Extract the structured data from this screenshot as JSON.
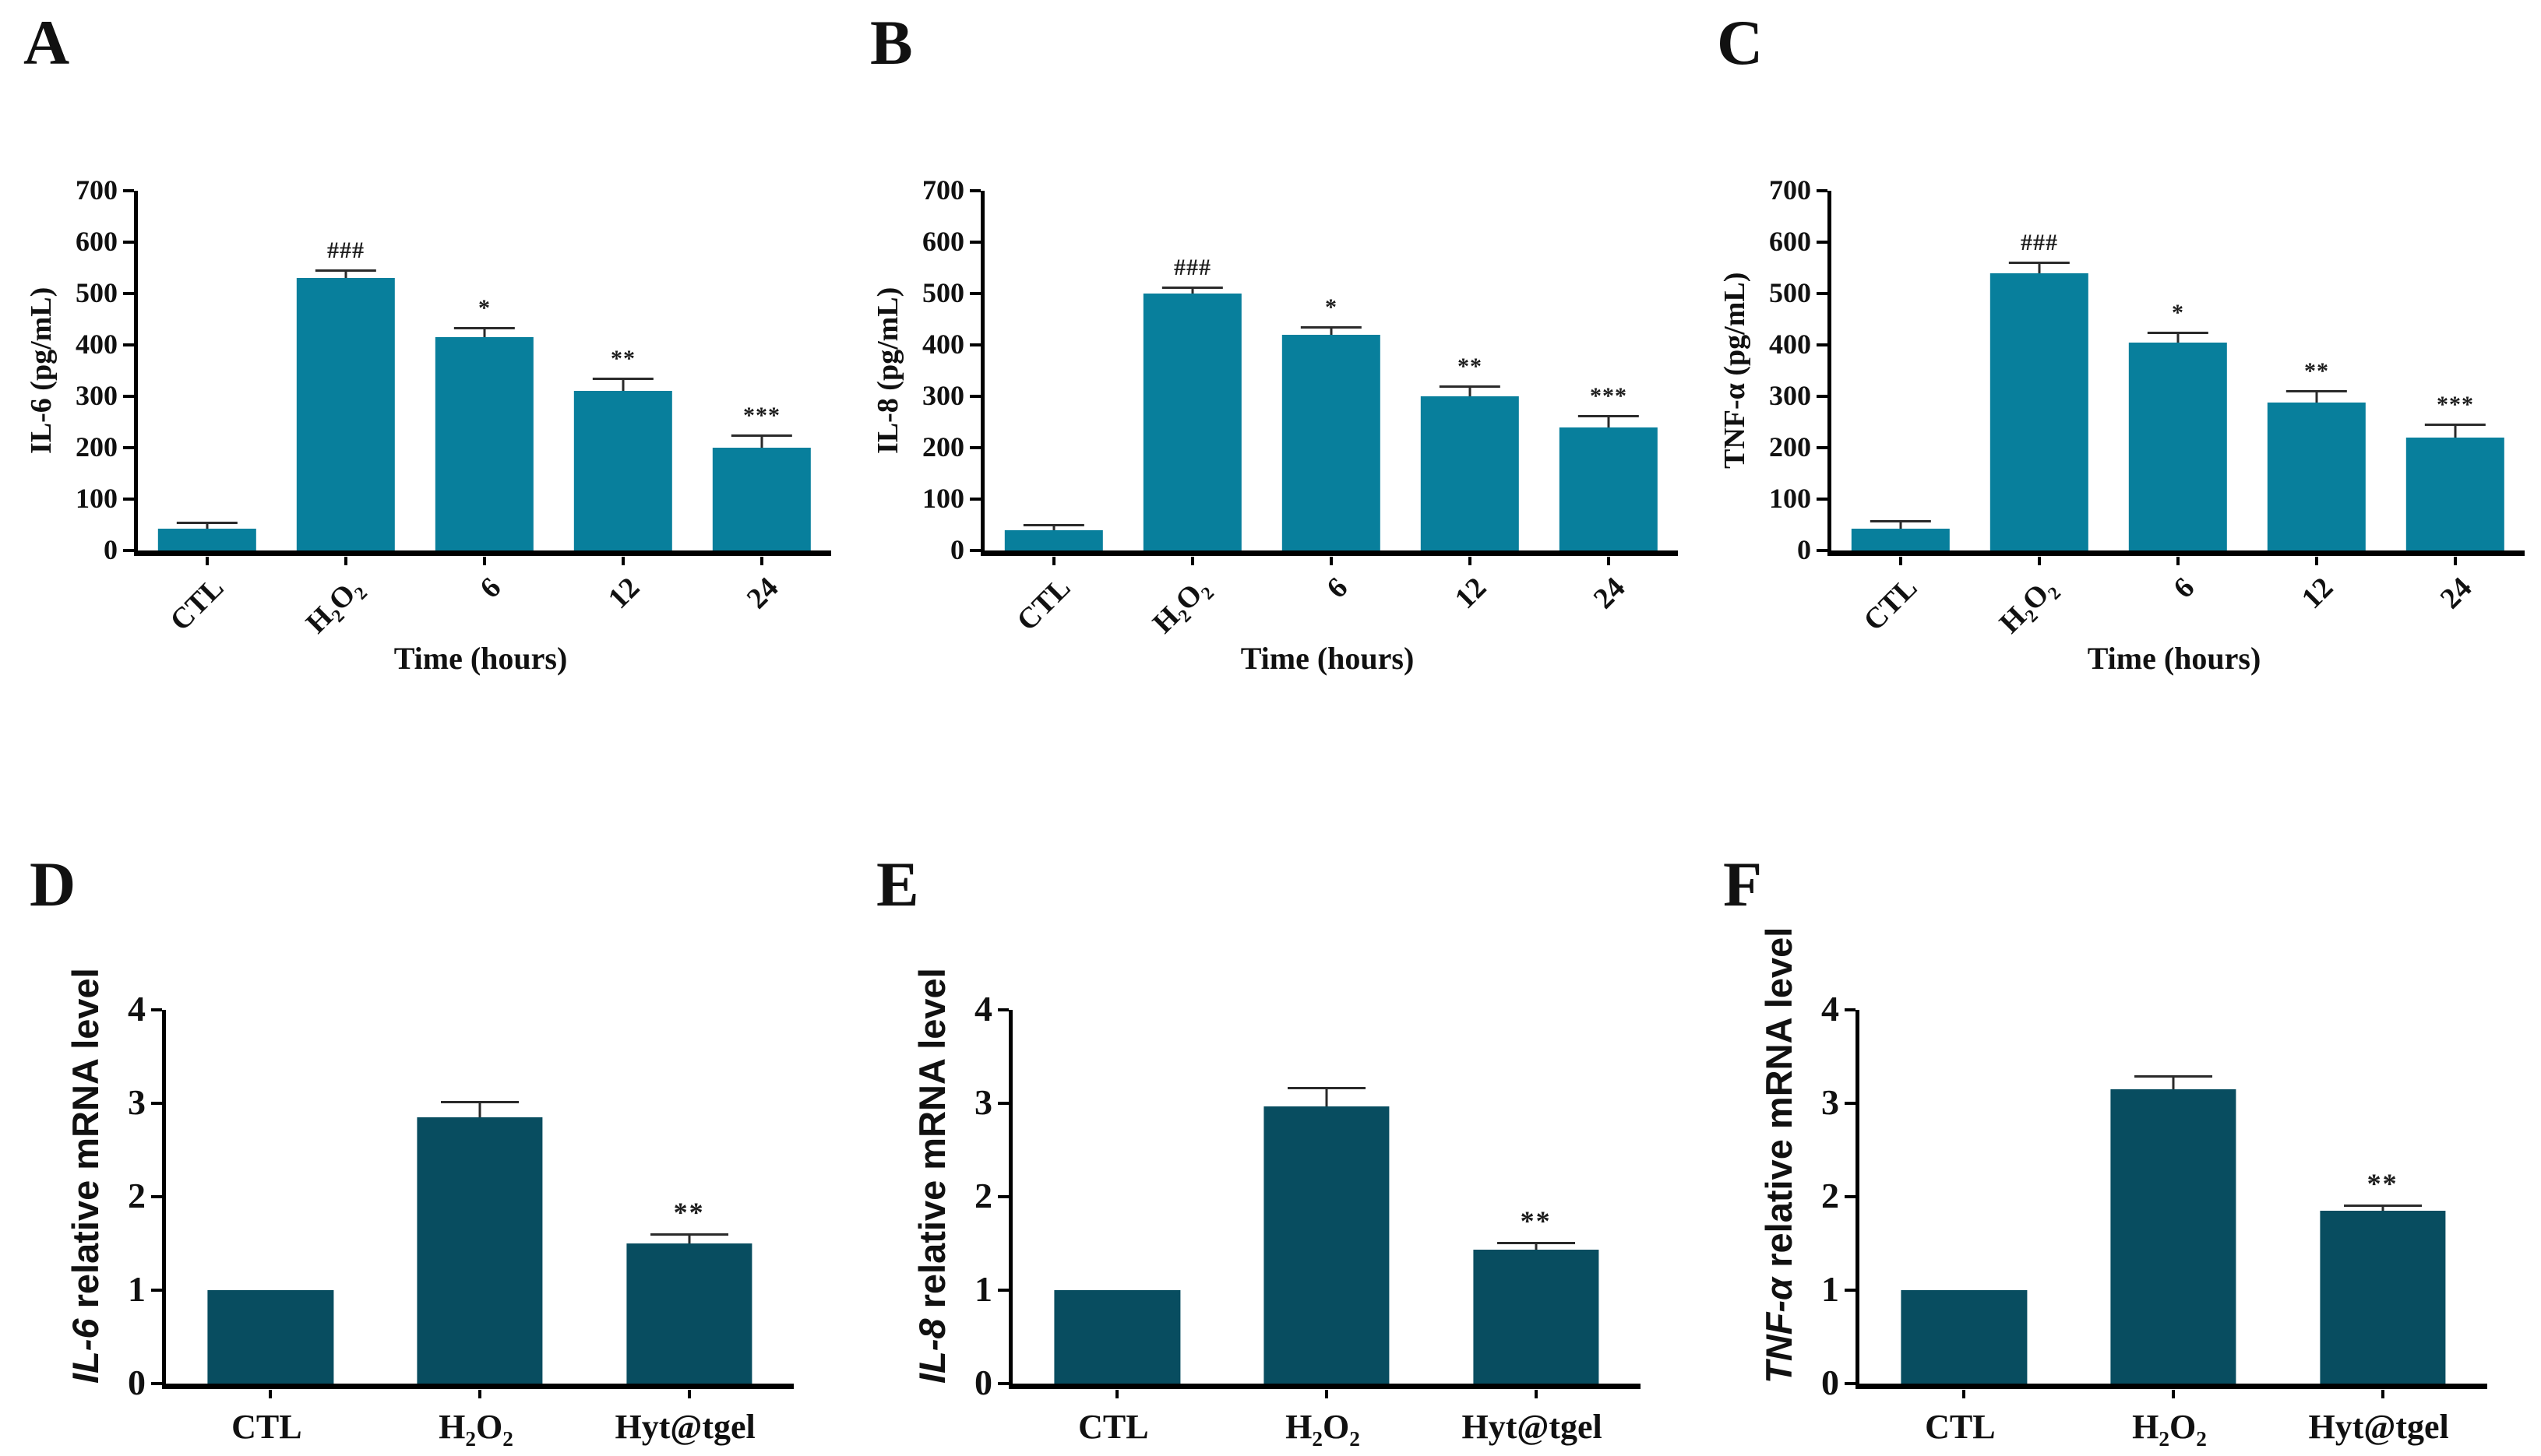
{
  "figure": {
    "panel_letters": [
      "A",
      "B",
      "C",
      "D",
      "E",
      "F"
    ],
    "bar_color_top_row": "#087f9c",
    "bar_color_bottom_row": "#084d60",
    "axis_color": "#000000",
    "error_bar_color": "#2a2a2a"
  },
  "chart_data": [
    {
      "type": "bar",
      "panel_label": "A",
      "ylabel_text": "IL-6 (pg/mL)",
      "ylabel": [
        {
          "t": "IL-6 (pg/mL)"
        }
      ],
      "xlabel": "Time (hours)",
      "ylim": [
        0,
        700
      ],
      "ytick_step": 100,
      "categories_text": [
        "CTL",
        "H2O2",
        "6",
        "12",
        "24"
      ],
      "categories": [
        [
          {
            "t": "CTL"
          }
        ],
        [
          {
            "t": "H"
          },
          {
            "t": "2",
            "sub": true
          },
          {
            "t": "O"
          },
          {
            "t": "2",
            "sub": true
          }
        ],
        [
          {
            "t": "6"
          }
        ],
        [
          {
            "t": "12"
          }
        ],
        [
          {
            "t": "24"
          }
        ]
      ],
      "values": [
        42,
        530,
        415,
        310,
        200
      ],
      "errors": [
        12,
        15,
        18,
        25,
        25
      ],
      "annotations": [
        "",
        "###",
        "*",
        "**",
        "***"
      ],
      "bar_color": "#087f9c",
      "bar_frac": 0.71,
      "rotated_xticks": true,
      "grid": false,
      "legend": null
    },
    {
      "type": "bar",
      "panel_label": "B",
      "ylabel_text": "IL-8 (pg/mL)",
      "ylabel": [
        {
          "t": "IL-8 (pg/mL)"
        }
      ],
      "xlabel": "Time (hours)",
      "ylim": [
        0,
        700
      ],
      "ytick_step": 100,
      "categories_text": [
        "CTL",
        "H2O2",
        "6",
        "12",
        "24"
      ],
      "categories": [
        [
          {
            "t": "CTL"
          }
        ],
        [
          {
            "t": "H"
          },
          {
            "t": "2",
            "sub": true
          },
          {
            "t": "O"
          },
          {
            "t": "2",
            "sub": true
          }
        ],
        [
          {
            "t": "6"
          }
        ],
        [
          {
            "t": "12"
          }
        ],
        [
          {
            "t": "24"
          }
        ]
      ],
      "values": [
        40,
        500,
        420,
        300,
        240
      ],
      "errors": [
        10,
        12,
        15,
        20,
        22
      ],
      "annotations": [
        "",
        "###",
        "*",
        "**",
        "***"
      ],
      "bar_color": "#087f9c",
      "bar_frac": 0.71,
      "rotated_xticks": true,
      "grid": false,
      "legend": null
    },
    {
      "type": "bar",
      "panel_label": "C",
      "ylabel_text": "TNF-α (pg/mL)",
      "ylabel": [
        {
          "t": "TNF-α (pg/mL)"
        }
      ],
      "xlabel": "Time (hours)",
      "ylim": [
        0,
        700
      ],
      "ytick_step": 100,
      "categories_text": [
        "CTL",
        "H2O2",
        "6",
        "12",
        "24"
      ],
      "categories": [
        [
          {
            "t": "CTL"
          }
        ],
        [
          {
            "t": "H"
          },
          {
            "t": "2",
            "sub": true
          },
          {
            "t": "O"
          },
          {
            "t": "2",
            "sub": true
          }
        ],
        [
          {
            "t": "6"
          }
        ],
        [
          {
            "t": "12"
          }
        ],
        [
          {
            "t": "24"
          }
        ]
      ],
      "values": [
        42,
        540,
        405,
        288,
        220
      ],
      "errors": [
        15,
        20,
        20,
        22,
        25
      ],
      "annotations": [
        "",
        "###",
        "*",
        "**",
        "***"
      ],
      "bar_color": "#087f9c",
      "bar_frac": 0.71,
      "rotated_xticks": true,
      "grid": false,
      "legend": null
    },
    {
      "type": "bar",
      "panel_label": "D",
      "ylabel_text": "IL-6 relative mRNA level",
      "ylabel": [
        {
          "t": "IL-6",
          "i": true
        },
        {
          "t": " relative mRNA level"
        }
      ],
      "xlabel": "",
      "ylim": [
        0,
        4
      ],
      "ytick_step": 1,
      "categories_text": [
        "CTL",
        "H2O2",
        "Hyt@tgel"
      ],
      "categories": [
        [
          {
            "t": "CTL"
          }
        ],
        [
          {
            "t": "H"
          },
          {
            "t": "2",
            "sub": true
          },
          {
            "t": "O"
          },
          {
            "t": "2",
            "sub": true
          }
        ],
        [
          {
            "t": "Hyt@tgel"
          }
        ]
      ],
      "values": [
        1.0,
        2.85,
        1.5
      ],
      "errors": [
        0,
        0.17,
        0.1
      ],
      "annotations": [
        "",
        "",
        "**"
      ],
      "bar_color": "#084d60",
      "bar_frac": 0.6,
      "rotated_xticks": false,
      "grid": false,
      "legend": null
    },
    {
      "type": "bar",
      "panel_label": "E",
      "ylabel_text": "IL-8 relative mRNA level",
      "ylabel": [
        {
          "t": "IL-8",
          "i": true
        },
        {
          "t": " relative mRNA level"
        }
      ],
      "xlabel": "",
      "ylim": [
        0,
        4
      ],
      "ytick_step": 1,
      "categories_text": [
        "CTL",
        "H2O2",
        "Hyt@tgel"
      ],
      "categories": [
        [
          {
            "t": "CTL"
          }
        ],
        [
          {
            "t": "H"
          },
          {
            "t": "2",
            "sub": true
          },
          {
            "t": "O"
          },
          {
            "t": "2",
            "sub": true
          }
        ],
        [
          {
            "t": "Hyt@tgel"
          }
        ]
      ],
      "values": [
        1.0,
        2.97,
        1.43
      ],
      "errors": [
        0,
        0.2,
        0.08
      ],
      "annotations": [
        "",
        "",
        "**"
      ],
      "bar_color": "#084d60",
      "bar_frac": 0.6,
      "rotated_xticks": false,
      "grid": false,
      "legend": null
    },
    {
      "type": "bar",
      "panel_label": "F",
      "ylabel_text": "TNF-α relative mRNA level",
      "ylabel": [
        {
          "t": "TNF-α",
          "i": true
        },
        {
          "t": " relative mRNA level"
        }
      ],
      "xlabel": "",
      "ylim": [
        0,
        4
      ],
      "ytick_step": 1,
      "categories_text": [
        "CTL",
        "H2O2",
        "Hyt@tgel"
      ],
      "categories": [
        [
          {
            "t": "CTL"
          }
        ],
        [
          {
            "t": "H"
          },
          {
            "t": "2",
            "sub": true
          },
          {
            "t": "O"
          },
          {
            "t": "2",
            "sub": true
          }
        ],
        [
          {
            "t": "Hyt@tgel"
          }
        ]
      ],
      "values": [
        1.0,
        3.15,
        1.85
      ],
      "errors": [
        0,
        0.14,
        0.06
      ],
      "annotations": [
        "",
        "",
        "**"
      ],
      "bar_color": "#084d60",
      "bar_frac": 0.6,
      "rotated_xticks": false,
      "grid": false,
      "legend": null
    }
  ]
}
